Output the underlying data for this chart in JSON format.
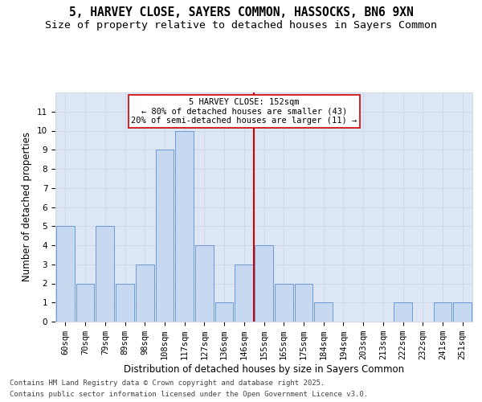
{
  "title_line1": "5, HARVEY CLOSE, SAYERS COMMON, HASSOCKS, BN6 9XN",
  "title_line2": "Size of property relative to detached houses in Sayers Common",
  "xlabel": "Distribution of detached houses by size in Sayers Common",
  "ylabel": "Number of detached properties",
  "categories": [
    "60sqm",
    "70sqm",
    "79sqm",
    "89sqm",
    "98sqm",
    "108sqm",
    "117sqm",
    "127sqm",
    "136sqm",
    "146sqm",
    "155sqm",
    "165sqm",
    "175sqm",
    "184sqm",
    "194sqm",
    "203sqm",
    "213sqm",
    "222sqm",
    "232sqm",
    "241sqm",
    "251sqm"
  ],
  "values": [
    5,
    2,
    5,
    2,
    3,
    9,
    10,
    4,
    1,
    3,
    4,
    2,
    2,
    1,
    0,
    0,
    0,
    1,
    0,
    1,
    1
  ],
  "bar_color": "#c6d9f0",
  "bar_edge_color": "#5b8fd4",
  "subject_line_color": "#cc0000",
  "annotation_box_color": "#ffffff",
  "annotation_box_edge_color": "#cc0000",
  "subject_label": "5 HARVEY CLOSE: 152sqm",
  "annotation_line2": "← 80% of detached houses are smaller (43)",
  "annotation_line3": "20% of semi-detached houses are larger (11) →",
  "ylim": [
    0,
    12
  ],
  "yticks": [
    0,
    1,
    2,
    3,
    4,
    5,
    6,
    7,
    8,
    9,
    10,
    11
  ],
  "grid_color": "#d0d8e8",
  "background_color": "#dce6f5",
  "footer_line1": "Contains HM Land Registry data © Crown copyright and database right 2025.",
  "footer_line2": "Contains public sector information licensed under the Open Government Licence v3.0.",
  "title_fontsize": 10.5,
  "subtitle_fontsize": 9.5,
  "axis_label_fontsize": 8.5,
  "tick_fontsize": 7.5,
  "annot_fontsize": 7.5,
  "footer_fontsize": 6.5
}
